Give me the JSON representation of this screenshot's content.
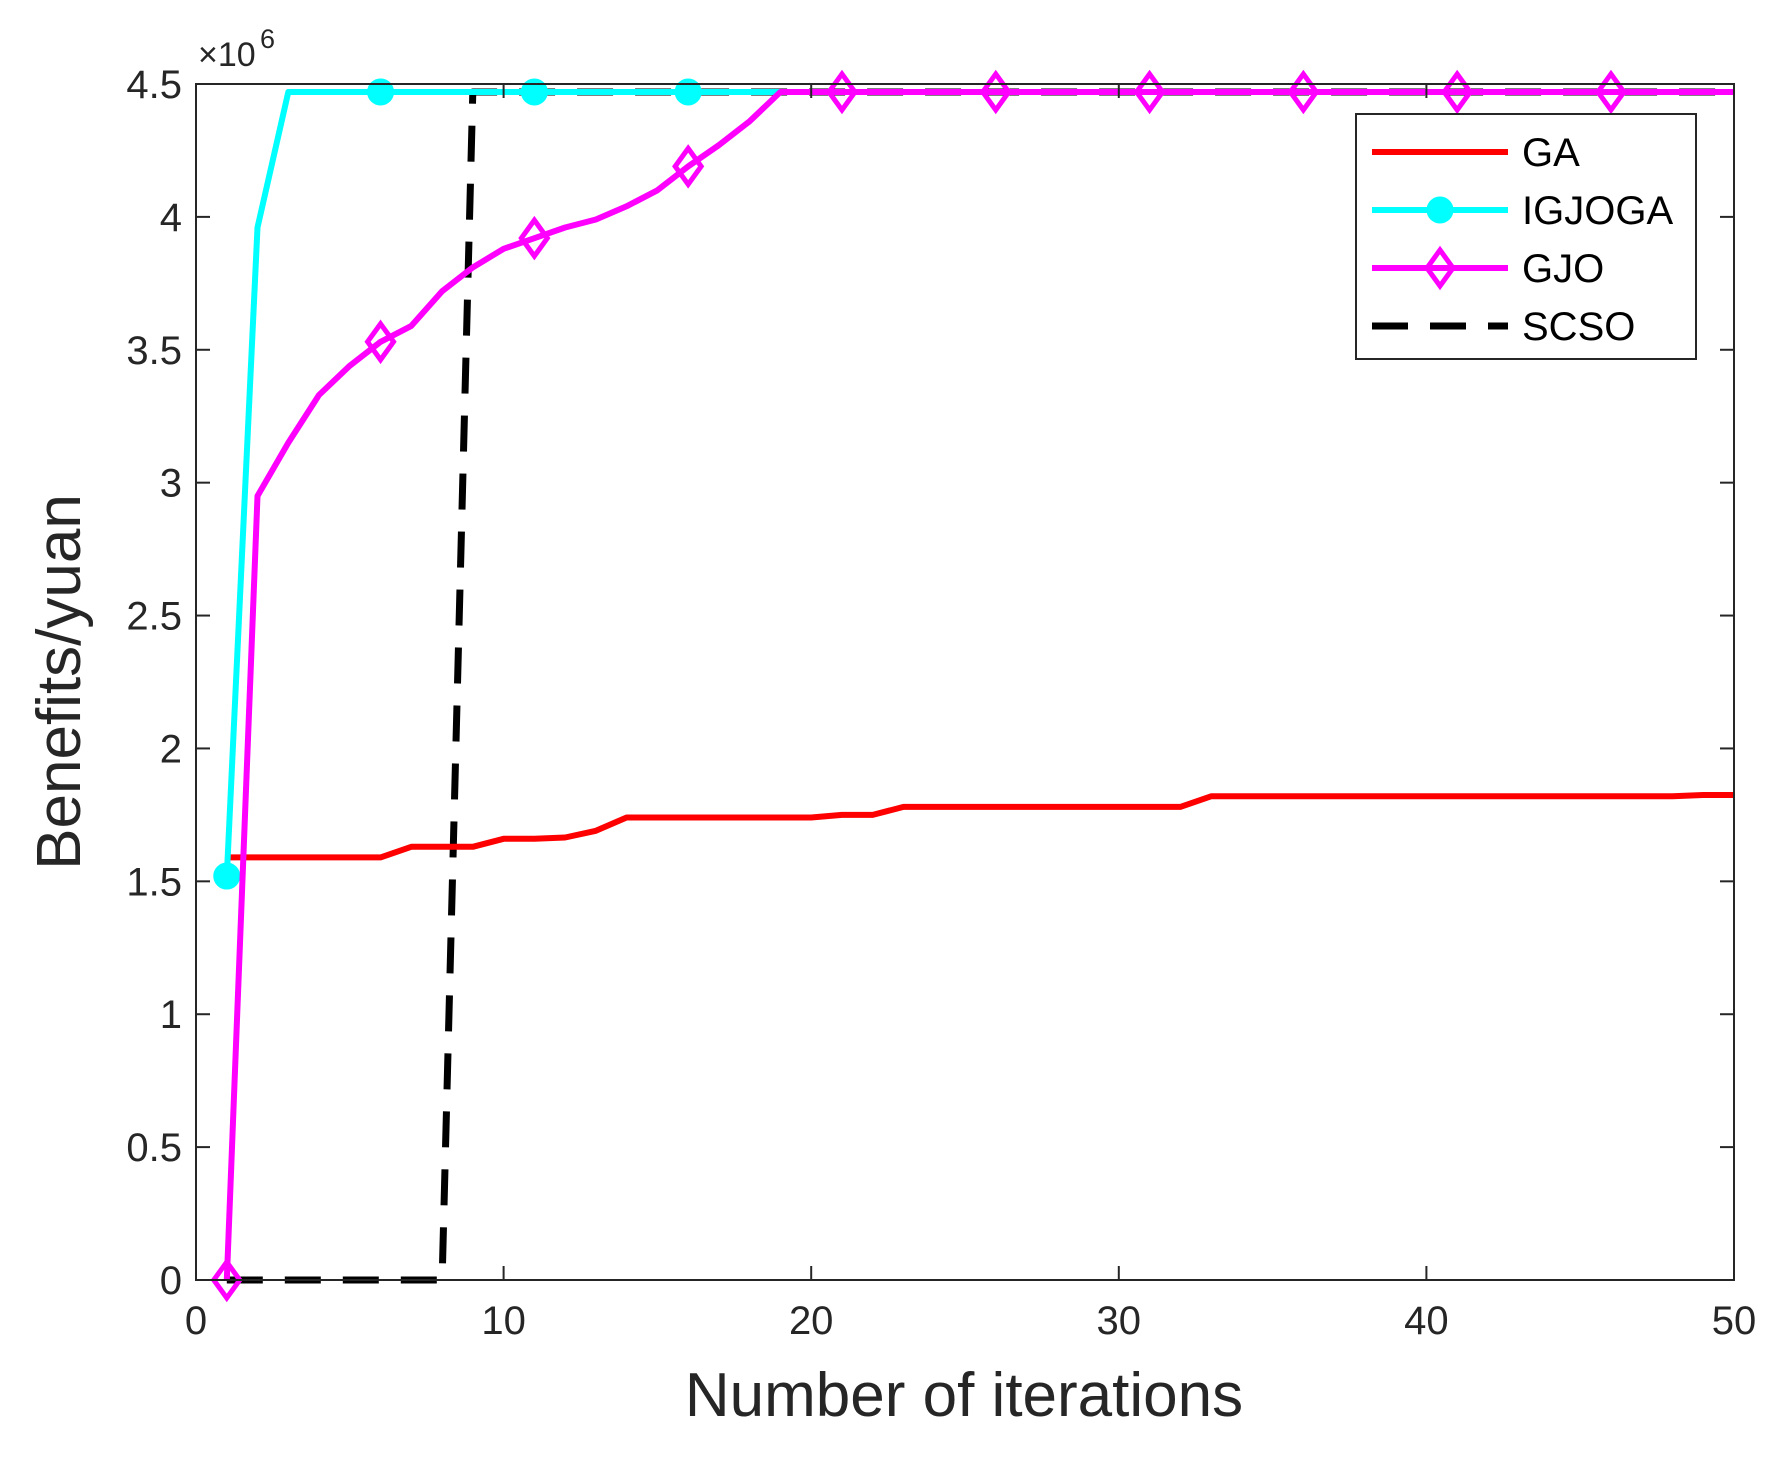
{
  "chart_data": {
    "type": "line",
    "title": "",
    "xlabel": "Number of iterations",
    "ylabel": "Benefits/yuan",
    "xlim": [
      0,
      50
    ],
    "ylim": [
      0,
      4.5
    ],
    "y_scale_label": "×10",
    "y_scale_exponent": "6",
    "xticks": [
      "0",
      "10",
      "20",
      "30",
      "40",
      "50"
    ],
    "yticks": [
      "0",
      "0.5",
      "1",
      "1.5",
      "2",
      "2.5",
      "3",
      "3.5",
      "4",
      "4.5"
    ],
    "legend_position": "top-right",
    "grid": false,
    "series": [
      {
        "name": "GA",
        "color": "#ff0000",
        "style": "solid",
        "marker": "none",
        "points": [
          [
            1,
            1.59
          ],
          [
            2,
            1.59
          ],
          [
            3,
            1.59
          ],
          [
            4,
            1.59
          ],
          [
            5,
            1.59
          ],
          [
            6,
            1.59
          ],
          [
            7,
            1.63
          ],
          [
            8,
            1.63
          ],
          [
            9,
            1.63
          ],
          [
            10,
            1.66
          ],
          [
            11,
            1.66
          ],
          [
            12,
            1.665
          ],
          [
            13,
            1.69
          ],
          [
            14,
            1.74
          ],
          [
            15,
            1.74
          ],
          [
            16,
            1.74
          ],
          [
            17,
            1.74
          ],
          [
            18,
            1.74
          ],
          [
            19,
            1.74
          ],
          [
            20,
            1.74
          ],
          [
            21,
            1.75
          ],
          [
            22,
            1.75
          ],
          [
            23,
            1.78
          ],
          [
            24,
            1.78
          ],
          [
            25,
            1.78
          ],
          [
            26,
            1.78
          ],
          [
            27,
            1.78
          ],
          [
            28,
            1.78
          ],
          [
            29,
            1.78
          ],
          [
            30,
            1.78
          ],
          [
            31,
            1.78
          ],
          [
            32,
            1.78
          ],
          [
            33,
            1.82
          ],
          [
            34,
            1.82
          ],
          [
            35,
            1.82
          ],
          [
            36,
            1.82
          ],
          [
            37,
            1.82
          ],
          [
            38,
            1.82
          ],
          [
            39,
            1.82
          ],
          [
            40,
            1.82
          ],
          [
            41,
            1.82
          ],
          [
            42,
            1.82
          ],
          [
            43,
            1.82
          ],
          [
            44,
            1.82
          ],
          [
            45,
            1.82
          ],
          [
            46,
            1.82
          ],
          [
            47,
            1.82
          ],
          [
            48,
            1.82
          ],
          [
            49,
            1.825
          ],
          [
            50,
            1.825
          ]
        ],
        "marker_points": []
      },
      {
        "name": "IGJOGA",
        "color": "#00ffff",
        "style": "solid",
        "marker": "circle",
        "points": [
          [
            1,
            1.52
          ],
          [
            2,
            3.96
          ],
          [
            3,
            4.47
          ],
          [
            4,
            4.47
          ],
          [
            5,
            4.47
          ],
          [
            6,
            4.47
          ],
          [
            7,
            4.47
          ],
          [
            8,
            4.47
          ],
          [
            9,
            4.47
          ],
          [
            10,
            4.47
          ],
          [
            11,
            4.47
          ],
          [
            12,
            4.47
          ],
          [
            13,
            4.47
          ],
          [
            14,
            4.47
          ],
          [
            15,
            4.47
          ],
          [
            16,
            4.47
          ],
          [
            17,
            4.47
          ],
          [
            18,
            4.47
          ],
          [
            19,
            4.47
          ],
          [
            20,
            4.47
          ],
          [
            25,
            4.47
          ],
          [
            30,
            4.47
          ],
          [
            35,
            4.47
          ],
          [
            40,
            4.47
          ],
          [
            45,
            4.47
          ],
          [
            50,
            4.47
          ]
        ],
        "marker_points": [
          [
            1,
            1.52
          ],
          [
            6,
            4.47
          ],
          [
            11,
            4.47
          ],
          [
            16,
            4.47
          ]
        ]
      },
      {
        "name": "GJO",
        "color": "#ff00ff",
        "style": "solid",
        "marker": "diamond",
        "points": [
          [
            1,
            0
          ],
          [
            2,
            2.95
          ],
          [
            3,
            3.15
          ],
          [
            4,
            3.33
          ],
          [
            5,
            3.44
          ],
          [
            6,
            3.53
          ],
          [
            7,
            3.59
          ],
          [
            8,
            3.72
          ],
          [
            9,
            3.81
          ],
          [
            10,
            3.88
          ],
          [
            11,
            3.92
          ],
          [
            12,
            3.96
          ],
          [
            13,
            3.99
          ],
          [
            14,
            4.04
          ],
          [
            15,
            4.1
          ],
          [
            16,
            4.19
          ],
          [
            17,
            4.27
          ],
          [
            18,
            4.36
          ],
          [
            19,
            4.47
          ],
          [
            20,
            4.47
          ],
          [
            25,
            4.47
          ],
          [
            30,
            4.47
          ],
          [
            35,
            4.47
          ],
          [
            40,
            4.47
          ],
          [
            45,
            4.47
          ],
          [
            50,
            4.47
          ]
        ],
        "marker_points": [
          [
            1,
            0
          ],
          [
            6,
            3.53
          ],
          [
            11,
            3.92
          ],
          [
            16,
            4.19
          ],
          [
            21,
            4.47
          ],
          [
            26,
            4.47
          ],
          [
            31,
            4.47
          ],
          [
            36,
            4.47
          ],
          [
            41,
            4.47
          ],
          [
            46,
            4.47
          ]
        ]
      },
      {
        "name": "SCSO",
        "color": "#000000",
        "style": "dashed",
        "marker": "none",
        "points": [
          [
            1,
            0
          ],
          [
            2,
            0
          ],
          [
            3,
            0
          ],
          [
            4,
            0
          ],
          [
            5,
            0
          ],
          [
            6,
            0
          ],
          [
            7,
            0
          ],
          [
            8,
            0
          ],
          [
            9,
            4.47
          ],
          [
            10,
            4.47
          ],
          [
            15,
            4.47
          ],
          [
            20,
            4.47
          ],
          [
            25,
            4.47
          ],
          [
            30,
            4.47
          ],
          [
            35,
            4.47
          ],
          [
            40,
            4.47
          ],
          [
            45,
            4.47
          ],
          [
            50,
            4.47
          ]
        ],
        "marker_points": []
      }
    ]
  }
}
